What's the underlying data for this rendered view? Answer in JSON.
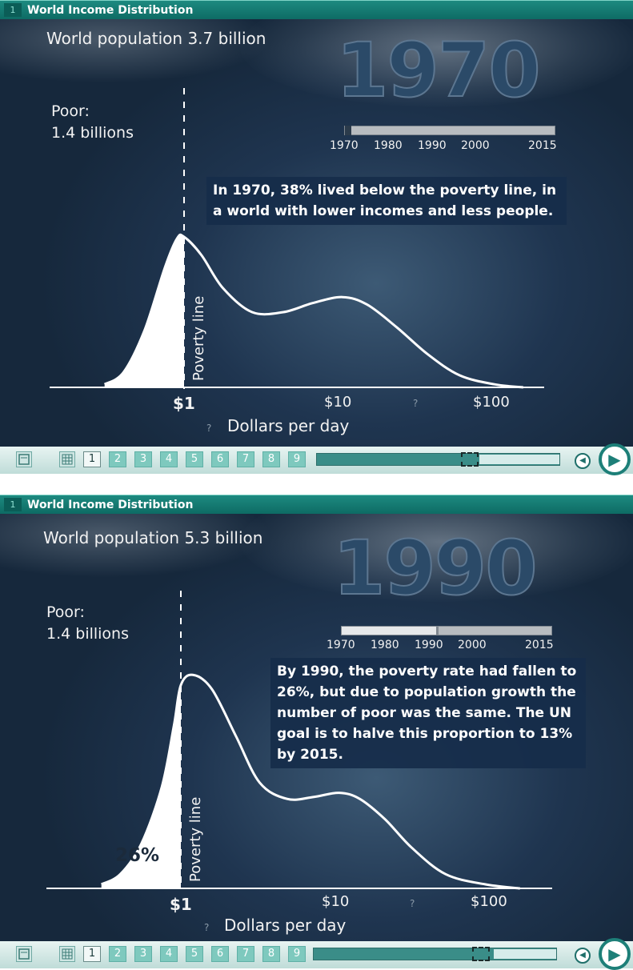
{
  "panels": [
    {
      "number": "1",
      "title": "World Income Distribution",
      "population": "World population 3.7 billion",
      "poor_label": "Poor:",
      "poor_value": "1.4 billions",
      "year": "1970",
      "slider_ticks": [
        "1970",
        "1980",
        "1990",
        "2000",
        "2015"
      ],
      "slider_value": 1970,
      "note": "In 1970, 38% lived below the poverty line, in a world with lower incomes and less people.",
      "poverty_label": "Poverty line",
      "percent_label": "",
      "x_ticks": [
        "$1",
        "$10",
        "$100"
      ],
      "x_label": "Dollars per day",
      "unknown_marks": [
        "?",
        "?"
      ]
    },
    {
      "number": "1",
      "title": "World Income Distribution",
      "population": "World population 5.3 billion",
      "poor_label": "Poor:",
      "poor_value": "1.4 billions",
      "year": "1990",
      "slider_ticks": [
        "1970",
        "1980",
        "1990",
        "2000",
        "2015"
      ],
      "slider_value": 1990,
      "note": "By 1990, the poverty rate had fallen to 26%, but due to population growth the number of poor was the same. The UN goal is to halve this proportion to 13% by 2015.",
      "poverty_label": "Poverty line",
      "percent_label": "26%",
      "x_ticks": [
        "$1",
        "$10",
        "$100"
      ],
      "x_label": "Dollars per day",
      "unknown_marks": [
        "?",
        "?"
      ]
    }
  ],
  "toolbar": {
    "pages": [
      "1",
      "2",
      "3",
      "4",
      "5",
      "6",
      "7",
      "8",
      "9"
    ],
    "active_page": "1",
    "icons": [
      "list-icon",
      "grid-icon",
      "back-icon",
      "play-icon"
    ]
  },
  "chart_data": [
    {
      "type": "area",
      "title": "World population 3.7 billion",
      "xlabel": "Dollars per day",
      "x_scale": "log",
      "x_ticks": [
        "$1",
        "$10",
        "$100"
      ],
      "xlim": [
        0.3,
        200
      ],
      "poverty_line": 1,
      "share_below_poverty_line": 38,
      "series": [
        {
          "name": "",
          "x": [
            0.3,
            0.4,
            0.55,
            0.75,
            0.9,
            1.0,
            1.3,
            1.8,
            2.8,
            4.5,
            7,
            11,
            16,
            25,
            40,
            65,
            110,
            170
          ],
          "y": [
            0.02,
            0.1,
            0.38,
            0.8,
            0.99,
            1.0,
            0.88,
            0.66,
            0.5,
            0.5,
            0.56,
            0.6,
            0.55,
            0.4,
            0.22,
            0.08,
            0.02,
            0.0
          ]
        }
      ]
    },
    {
      "type": "area",
      "title": "World population 5.3 billion",
      "xlabel": "Dollars per day",
      "x_scale": "log",
      "x_ticks": [
        "$1",
        "$10",
        "$100"
      ],
      "xlim": [
        0.3,
        200
      ],
      "poverty_line": 1,
      "share_below_poverty_line": 26,
      "series": [
        {
          "name": "",
          "x": [
            0.3,
            0.4,
            0.55,
            0.75,
            0.9,
            1.0,
            1.2,
            1.6,
            2.3,
            3.3,
            5,
            7.5,
            11,
            15,
            22,
            33,
            55,
            100,
            170
          ],
          "y": [
            0.02,
            0.07,
            0.22,
            0.5,
            0.8,
            1.0,
            1.05,
            0.98,
            0.75,
            0.52,
            0.44,
            0.45,
            0.47,
            0.44,
            0.34,
            0.2,
            0.07,
            0.02,
            0.0
          ]
        }
      ]
    }
  ]
}
